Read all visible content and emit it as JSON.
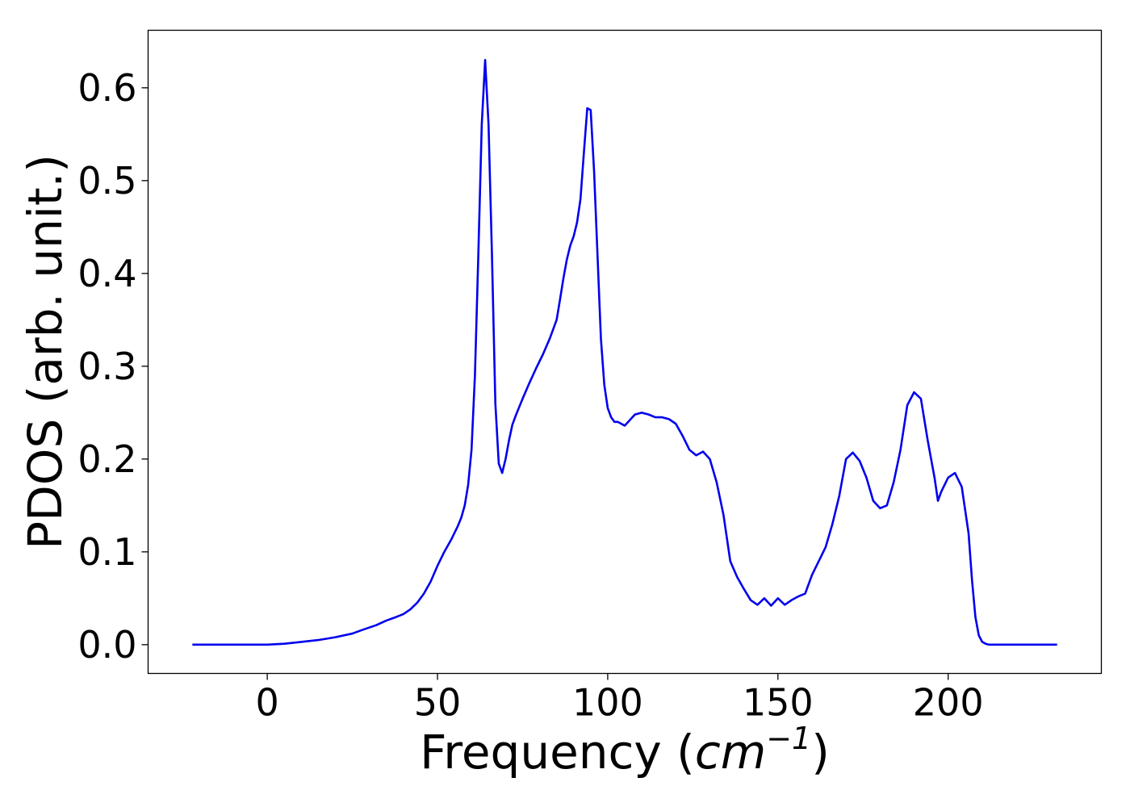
{
  "chart_data": {
    "type": "line",
    "title": "",
    "xlabel": {
      "prefix": "Frequency (",
      "unit": "cm",
      "exponent": "−1",
      "suffix": ")"
    },
    "ylabel": "PDOS (arb. unit.)",
    "xlim": [
      -35,
      245
    ],
    "ylim": [
      -0.031,
      0.662
    ],
    "xticks": [
      0,
      50,
      100,
      150,
      200
    ],
    "xtick_labels": [
      "0",
      "50",
      "100",
      "150",
      "200"
    ],
    "yticks": [
      0.0,
      0.1,
      0.2,
      0.3,
      0.4,
      0.5,
      0.6
    ],
    "ytick_labels": [
      "0.0",
      "0.1",
      "0.2",
      "0.3",
      "0.4",
      "0.5",
      "0.6"
    ],
    "grid": false,
    "legend": null,
    "series": [
      {
        "color": "#0000ee",
        "x": [
          -22,
          0,
          5,
          10,
          15,
          20,
          25,
          28,
          32,
          35,
          38,
          40,
          42,
          44,
          46,
          48,
          50,
          52,
          54,
          56,
          57,
          58,
          59,
          60,
          61,
          62,
          63,
          64,
          65,
          66,
          67,
          68,
          69,
          70,
          71,
          72,
          73,
          74,
          75,
          77,
          79,
          81,
          83,
          85,
          86,
          87,
          88,
          89,
          90,
          91,
          92,
          93,
          94,
          95,
          96,
          97,
          98,
          99,
          100,
          101,
          102,
          103,
          104,
          105,
          106,
          108,
          110,
          112,
          114,
          116,
          118,
          120,
          122,
          124,
          126,
          128,
          130,
          132,
          134,
          136,
          138,
          140,
          142,
          144,
          146,
          148,
          150,
          152,
          154,
          156,
          158,
          160,
          162,
          164,
          166,
          168,
          170,
          172,
          174,
          176,
          178,
          180,
          182,
          184,
          186,
          188,
          190,
          192,
          194,
          196,
          197,
          198,
          200,
          202,
          204,
          206,
          207,
          208,
          209,
          210,
          211,
          212,
          213,
          214,
          215,
          216,
          217,
          218,
          220,
          232
        ],
        "y": [
          0.0,
          0.0,
          0.001,
          0.003,
          0.005,
          0.008,
          0.012,
          0.016,
          0.021,
          0.026,
          0.03,
          0.033,
          0.038,
          0.045,
          0.055,
          0.068,
          0.085,
          0.1,
          0.113,
          0.128,
          0.137,
          0.15,
          0.172,
          0.21,
          0.29,
          0.42,
          0.56,
          0.63,
          0.56,
          0.42,
          0.26,
          0.195,
          0.185,
          0.2,
          0.22,
          0.237,
          0.247,
          0.256,
          0.265,
          0.282,
          0.298,
          0.313,
          0.33,
          0.35,
          0.372,
          0.395,
          0.415,
          0.43,
          0.44,
          0.455,
          0.48,
          0.53,
          0.578,
          0.576,
          0.51,
          0.42,
          0.33,
          0.28,
          0.255,
          0.245,
          0.24,
          0.24,
          0.238,
          0.236,
          0.24,
          0.248,
          0.25,
          0.248,
          0.245,
          0.245,
          0.243,
          0.238,
          0.225,
          0.21,
          0.204,
          0.208,
          0.2,
          0.175,
          0.14,
          0.09,
          0.073,
          0.06,
          0.048,
          0.043,
          0.05,
          0.042,
          0.05,
          0.043,
          0.048,
          0.052,
          0.055,
          0.075,
          0.09,
          0.105,
          0.13,
          0.16,
          0.2,
          0.207,
          0.198,
          0.18,
          0.155,
          0.147,
          0.15,
          0.175,
          0.21,
          0.258,
          0.272,
          0.265,
          0.22,
          0.18,
          0.155,
          0.165,
          0.18,
          0.185,
          0.17,
          0.12,
          0.07,
          0.03,
          0.01,
          0.003,
          0.001,
          0.0,
          0.0,
          0.0,
          0.0,
          0.0,
          0.0,
          0.0,
          0.0,
          0.0
        ]
      }
    ]
  }
}
